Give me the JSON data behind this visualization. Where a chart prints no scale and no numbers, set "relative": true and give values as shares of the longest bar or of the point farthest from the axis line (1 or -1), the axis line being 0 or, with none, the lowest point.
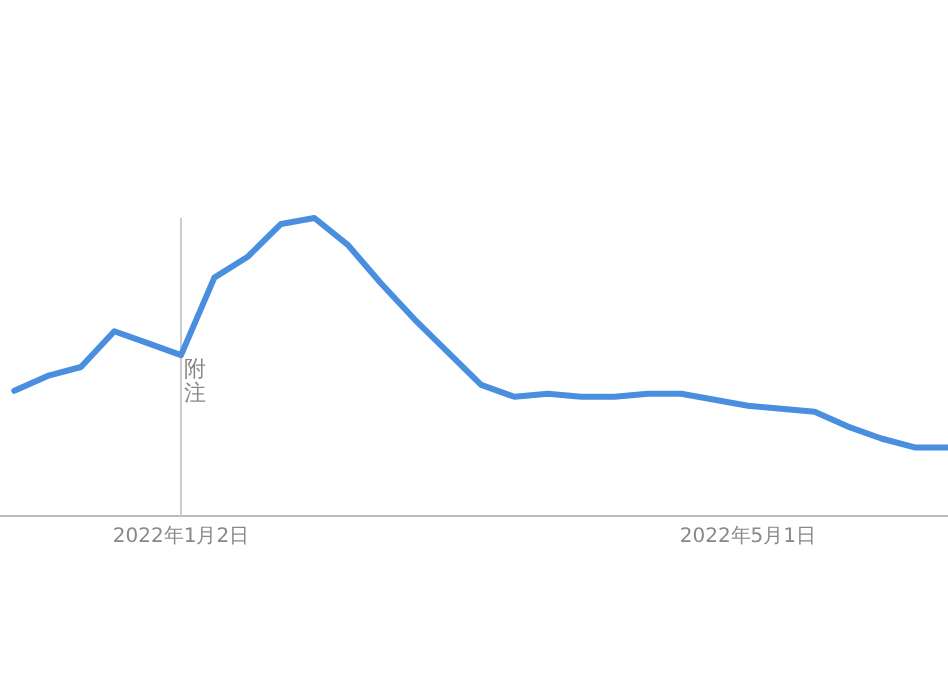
{
  "chart_data": {
    "type": "line",
    "relative": true,
    "x": [
      "2021-11-28",
      "2021-12-05",
      "2021-12-12",
      "2021-12-19",
      "2021-12-26",
      "2022-01-02",
      "2022-01-09",
      "2022-01-16",
      "2022-01-23",
      "2022-01-30",
      "2022-02-06",
      "2022-02-13",
      "2022-02-20",
      "2022-02-27",
      "2022-03-06",
      "2022-03-13",
      "2022-03-20",
      "2022-03-27",
      "2022-04-03",
      "2022-04-10",
      "2022-04-17",
      "2022-04-24",
      "2022-05-01",
      "2022-05-08",
      "2022-05-15",
      "2022-05-22",
      "2022-05-29",
      "2022-06-05",
      "2022-06-12"
    ],
    "series": [
      {
        "color": "#4a8ee0",
        "values": [
          0.42,
          0.47,
          0.5,
          0.62,
          0.58,
          0.54,
          0.8,
          0.87,
          0.98,
          1,
          0.91,
          0.78,
          0.66,
          0.55,
          0.44,
          0.4,
          0.41,
          0.4,
          0.4,
          0.41,
          0.41,
          0.39,
          0.37,
          0.36,
          0.35,
          0.3,
          0.26,
          0.23,
          0.23
        ]
      }
    ],
    "xlim": [
      "2021-11-25",
      "2022-06-12"
    ],
    "xticks": [
      {
        "value": "2022-01-02",
        "label": "2022年1月2日"
      },
      {
        "value": "2022-05-01",
        "label": "2022年5月1日"
      }
    ],
    "ref_lines": [
      {
        "axis": "x",
        "value": "2022-01-02",
        "label": "附注",
        "color": "#cccccc"
      }
    ],
    "marker": "none",
    "line_style": "solid"
  }
}
